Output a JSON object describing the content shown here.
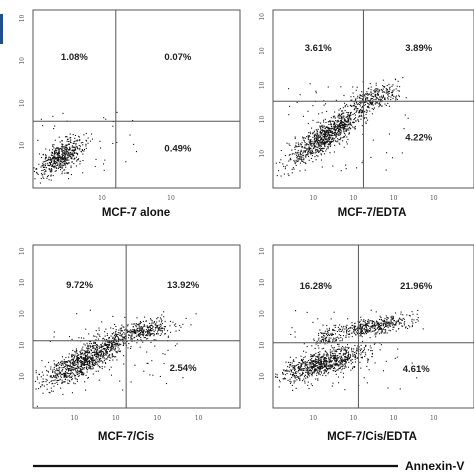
{
  "chart_data": [
    {
      "type": "scatter",
      "title": "MCF-7 alone",
      "quadrants": {
        "upper_left": "1.08%",
        "upper_right": "0.07%",
        "lower_right": "0.49%"
      },
      "y_ticks": [
        "10",
        "10",
        "10",
        "10"
      ],
      "x_ticks": [
        "10",
        "10"
      ],
      "gates": {
        "x": 1.6,
        "y": 1.5
      },
      "xlim": [
        0,
        4
      ],
      "ylim": [
        0,
        4
      ],
      "clusters": [
        {
          "cx": 0.55,
          "cy": 0.7,
          "sx": 0.22,
          "sy": 0.2,
          "rho": 0.6,
          "n": 520
        }
      ],
      "sparse": [
        {
          "x0": 0.05,
          "x1": 2.0,
          "y0": 0.2,
          "y1": 1.7,
          "n": 40
        }
      ]
    },
    {
      "type": "scatter",
      "title": "MCF-7/EDTA",
      "quadrants": {
        "upper_left": "3.61%",
        "upper_right": "3.89%",
        "lower_right": "4.22%"
      },
      "y_ticks": [
        "10",
        "10",
        "10",
        "10",
        "10"
      ],
      "x_ticks": [
        "10",
        "10",
        "10",
        "10"
      ],
      "gates": {
        "x": 1.8,
        "y": 1.95
      },
      "xlim": [
        0,
        4
      ],
      "ylim": [
        0,
        4
      ],
      "clusters": [
        {
          "cx": 1.1,
          "cy": 1.2,
          "sx": 0.38,
          "sy": 0.32,
          "rho": 0.85,
          "n": 900
        },
        {
          "cx": 1.95,
          "cy": 2.0,
          "sx": 0.28,
          "sy": 0.18,
          "rho": 0.6,
          "n": 260
        }
      ],
      "sparse": [
        {
          "x0": 0.3,
          "x1": 2.7,
          "y0": 0.3,
          "y1": 2.4,
          "n": 70
        }
      ]
    },
    {
      "type": "scatter",
      "title": "MCF-7/Cis",
      "quadrants": {
        "upper_left": "9.72%",
        "upper_right": "13.92%",
        "lower_right": "2.54%"
      },
      "y_ticks": [
        "10",
        "10",
        "10",
        "10",
        "10"
      ],
      "x_ticks": [
        "10",
        "10",
        "10",
        "10"
      ],
      "gates": {
        "x": 1.8,
        "y": 1.65
      },
      "xlim": [
        0,
        4
      ],
      "ylim": [
        0,
        4
      ],
      "clusters": [
        {
          "cx": 1.0,
          "cy": 1.15,
          "sx": 0.42,
          "sy": 0.32,
          "rho": 0.8,
          "n": 900
        },
        {
          "cx": 2.05,
          "cy": 1.9,
          "sx": 0.36,
          "sy": 0.14,
          "rho": 0.5,
          "n": 330
        },
        {
          "cx": 1.55,
          "cy": 1.6,
          "sx": 0.12,
          "sy": 0.1,
          "rho": 0.5,
          "n": 60
        }
      ],
      "sparse": [
        {
          "x0": 0.3,
          "x1": 2.9,
          "y0": 0.4,
          "y1": 2.4,
          "n": 60
        }
      ]
    },
    {
      "type": "scatter",
      "title": "MCF-7/Cis/EDTA",
      "quadrants": {
        "upper_left": "16.28%",
        "upper_right": "21.96%",
        "lower_right": "4.61%"
      },
      "y_ticks": [
        "10",
        "10",
        "10",
        "10",
        "10"
      ],
      "x_ticks": [
        "10",
        "10",
        "10",
        "10"
      ],
      "gates": {
        "x": 1.7,
        "y": 1.6
      },
      "xlim": [
        0,
        4
      ],
      "ylim": [
        0,
        4
      ],
      "clusters": [
        {
          "cx": 1.0,
          "cy": 1.1,
          "sx": 0.42,
          "sy": 0.22,
          "rho": 0.7,
          "n": 820
        },
        {
          "cx": 1.95,
          "cy": 2.0,
          "sx": 0.38,
          "sy": 0.12,
          "rho": 0.5,
          "n": 420
        },
        {
          "cx": 1.05,
          "cy": 1.7,
          "sx": 0.12,
          "sy": 0.12,
          "rho": 0.3,
          "n": 70
        }
      ],
      "sparse": [
        {
          "x0": 0.3,
          "x1": 2.9,
          "y0": 0.4,
          "y1": 2.4,
          "n": 70
        }
      ]
    }
  ],
  "axis_title": "Annexin-V",
  "colors": {
    "dot": "#111111",
    "frame": "#555555",
    "gate": "#555555",
    "axis": "#111111"
  }
}
